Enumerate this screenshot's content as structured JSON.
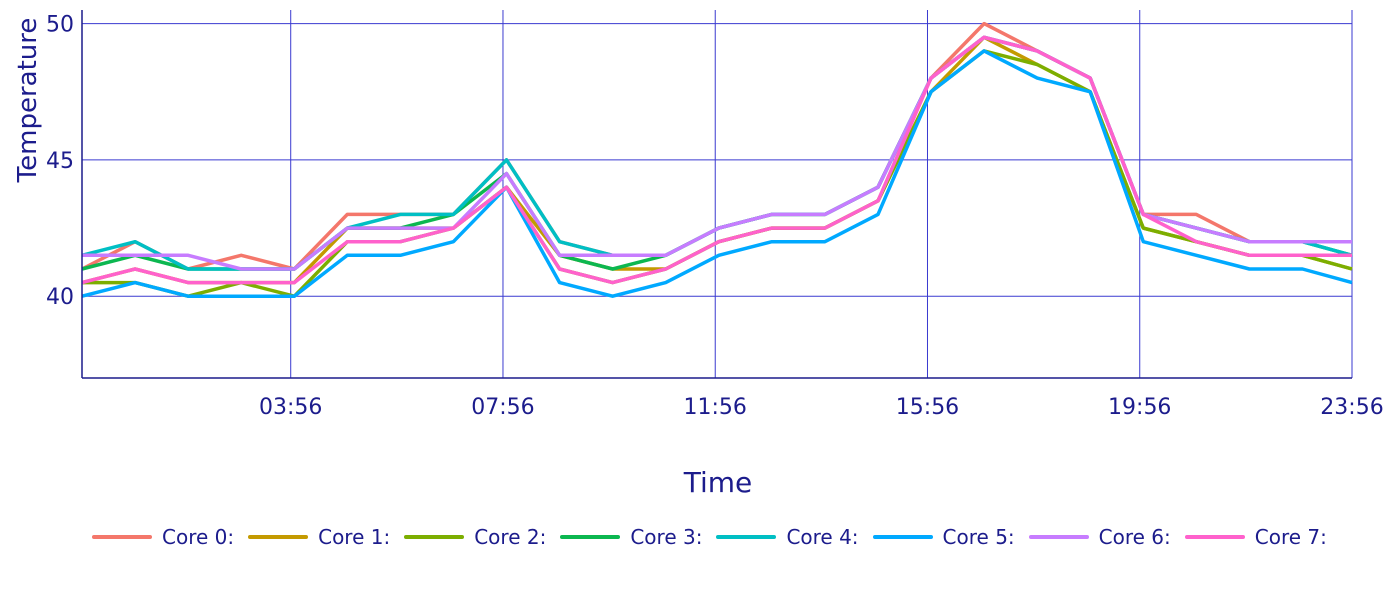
{
  "chart_data": {
    "type": "line",
    "ylabel": "Temperature",
    "xlabel": "Time",
    "ylim": [
      37,
      50.5
    ],
    "yticks": [
      40,
      45,
      50
    ],
    "xticks": [
      "03:56",
      "07:56",
      "11:56",
      "15:56",
      "19:56",
      "23:56"
    ],
    "xtick_pos_minutes": [
      236,
      476,
      716,
      956,
      1196,
      1436
    ],
    "xlim_minutes": [
      0,
      1436
    ],
    "grid": true,
    "legend_placement": "bottom",
    "series": [
      {
        "name": "Core 0:",
        "color": "#f4776b",
        "x": [
          0,
          60,
          120,
          180,
          240,
          300,
          360,
          420,
          480,
          540,
          600,
          660,
          720,
          780,
          840,
          900,
          960,
          1020,
          1080,
          1140,
          1200,
          1260,
          1320,
          1380,
          1436
        ],
        "values": [
          41,
          42,
          41,
          41.5,
          41,
          43,
          43,
          43,
          45,
          42,
          41.5,
          41.5,
          42.5,
          43,
          43,
          44,
          48,
          50,
          49,
          48,
          43,
          43,
          42,
          42,
          42
        ]
      },
      {
        "name": "Core 1:",
        "color": "#c49a00",
        "x": [
          0,
          60,
          120,
          180,
          240,
          300,
          360,
          420,
          480,
          540,
          600,
          660,
          720,
          780,
          840,
          900,
          960,
          1020,
          1080,
          1140,
          1200,
          1260,
          1320,
          1380,
          1436
        ],
        "values": [
          40.5,
          41,
          40.5,
          40.5,
          40.5,
          42.5,
          42.5,
          42.5,
          44,
          41.5,
          41,
          41,
          42,
          42.5,
          42.5,
          43.5,
          47.5,
          49.5,
          48.5,
          47.5,
          42.5,
          42,
          41.5,
          41.5,
          41
        ]
      },
      {
        "name": "Core 2:",
        "color": "#7cae00",
        "x": [
          0,
          60,
          120,
          180,
          240,
          300,
          360,
          420,
          480,
          540,
          600,
          660,
          720,
          780,
          840,
          900,
          960,
          1020,
          1080,
          1140,
          1200,
          1260,
          1320,
          1380,
          1436
        ],
        "values": [
          40.5,
          40.5,
          40,
          40.5,
          40,
          42,
          42,
          42.5,
          44,
          41,
          40.5,
          41,
          42,
          42.5,
          42.5,
          43.5,
          47.5,
          49,
          48.5,
          47.5,
          42.5,
          42,
          41.5,
          41.5,
          41
        ]
      },
      {
        "name": "Core 3:",
        "color": "#0cb750",
        "x": [
          0,
          60,
          120,
          180,
          240,
          300,
          360,
          420,
          480,
          540,
          600,
          660,
          720,
          780,
          840,
          900,
          960,
          1020,
          1080,
          1140,
          1200,
          1260,
          1320,
          1380,
          1436
        ],
        "values": [
          41,
          41.5,
          41,
          41,
          41,
          42.5,
          42.5,
          43,
          44.5,
          41.5,
          41,
          41.5,
          42.5,
          43,
          43,
          44,
          48,
          49.5,
          49,
          48,
          43,
          42.5,
          42,
          42,
          41.5
        ]
      },
      {
        "name": "Core 4:",
        "color": "#00bfc4",
        "x": [
          0,
          60,
          120,
          180,
          240,
          300,
          360,
          420,
          480,
          540,
          600,
          660,
          720,
          780,
          840,
          900,
          960,
          1020,
          1080,
          1140,
          1200,
          1260,
          1320,
          1380,
          1436
        ],
        "values": [
          41.5,
          42,
          41,
          41,
          41,
          42.5,
          43,
          43,
          45,
          42,
          41.5,
          41.5,
          42.5,
          43,
          43,
          44,
          48,
          49.5,
          49,
          48,
          43,
          42.5,
          42,
          42,
          41.5
        ]
      },
      {
        "name": "Core 5:",
        "color": "#00a9ff",
        "x": [
          0,
          60,
          120,
          180,
          240,
          300,
          360,
          420,
          480,
          540,
          600,
          660,
          720,
          780,
          840,
          900,
          960,
          1020,
          1080,
          1140,
          1200,
          1260,
          1320,
          1380,
          1436
        ],
        "values": [
          40,
          40.5,
          40,
          40,
          40,
          41.5,
          41.5,
          42,
          44,
          40.5,
          40,
          40.5,
          41.5,
          42,
          42,
          43,
          47.5,
          49,
          48,
          47.5,
          42,
          41.5,
          41,
          41,
          40.5
        ]
      },
      {
        "name": "Core 6:",
        "color": "#c77cff",
        "x": [
          0,
          60,
          120,
          180,
          240,
          300,
          360,
          420,
          480,
          540,
          600,
          660,
          720,
          780,
          840,
          900,
          960,
          1020,
          1080,
          1140,
          1200,
          1260,
          1320,
          1380,
          1436
        ],
        "values": [
          41.5,
          41.5,
          41.5,
          41,
          41,
          42.5,
          42.5,
          42.5,
          44.5,
          41.5,
          41.5,
          41.5,
          42.5,
          43,
          43,
          44,
          48,
          49.5,
          49,
          48,
          43,
          42.5,
          42,
          42,
          42
        ]
      },
      {
        "name": "Core 7:",
        "color": "#ff61cc",
        "x": [
          0,
          60,
          120,
          180,
          240,
          300,
          360,
          420,
          480,
          540,
          600,
          660,
          720,
          780,
          840,
          900,
          960,
          1020,
          1080,
          1140,
          1200,
          1260,
          1320,
          1380,
          1436
        ],
        "values": [
          40.5,
          41,
          40.5,
          40.5,
          40.5,
          42,
          42,
          42.5,
          44,
          41,
          40.5,
          41,
          42,
          42.5,
          42.5,
          43.5,
          48,
          49.5,
          49,
          48,
          43,
          42,
          41.5,
          41.5,
          41.5
        ]
      }
    ]
  }
}
